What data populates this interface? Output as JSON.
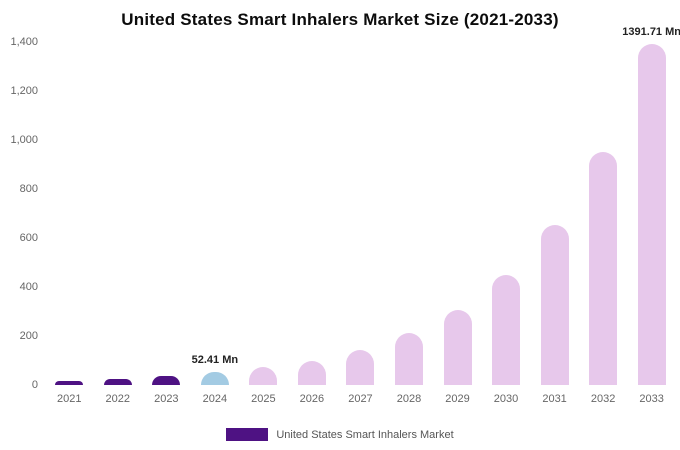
{
  "chart_data": {
    "type": "bar",
    "title": "United States Smart Inhalers Market Size (2021-2033)",
    "unit": "Mn",
    "xlabel": "",
    "ylabel": "",
    "ylim": [
      0,
      1400
    ],
    "ytick_step": 200,
    "ytick_labels": [
      "0",
      "200",
      "400",
      "600",
      "800",
      "1,000",
      "1,200",
      "1,400"
    ],
    "grid": false,
    "legend": {
      "label": "United States Smart Inhalers Market",
      "position": "bottom"
    },
    "categories": [
      "2021",
      "2022",
      "2023",
      "2024",
      "2025",
      "2026",
      "2027",
      "2028",
      "2029",
      "2030",
      "2031",
      "2032",
      "2033"
    ],
    "values": [
      15,
      24,
      36,
      52.41,
      72,
      100,
      143,
      212,
      308,
      450,
      655,
      950,
      1391.71
    ],
    "data_labels": {
      "2024": "52.41 Mn",
      "2033": "1391.71 Mn"
    },
    "segments": [
      "historical",
      "historical",
      "historical",
      "base",
      "forecast",
      "forecast",
      "forecast",
      "forecast",
      "forecast",
      "forecast",
      "forecast",
      "forecast",
      "forecast"
    ],
    "colors": {
      "historical": "#4e1283",
      "base": "#a3cbe3",
      "forecast": "#e7c8eb",
      "axis_text": "#666666",
      "label_text": "#222222",
      "title_text": "#0c0c0c"
    }
  }
}
